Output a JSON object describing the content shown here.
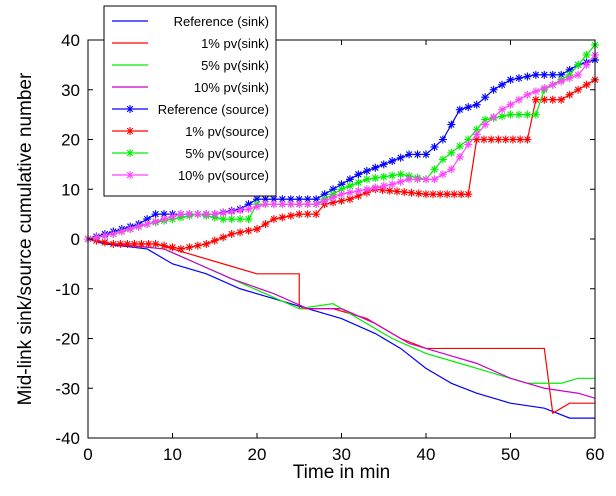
{
  "chart_data": {
    "type": "line",
    "title": "",
    "xlabel": "Time in min",
    "ylabel": "Mid-link sink/source cumulative number",
    "xlim": [
      0,
      60
    ],
    "ylim": [
      -40,
      40
    ],
    "xticks": [
      0,
      10,
      20,
      30,
      40,
      50,
      60
    ],
    "yticks": [
      -40,
      -30,
      -20,
      -10,
      0,
      10,
      20,
      30,
      40
    ],
    "grid": false,
    "legend_position": "top-left",
    "series": [
      {
        "name": "Reference (sink)",
        "color": "#0000ff",
        "marker": "none",
        "points": [
          [
            0,
            0
          ],
          [
            2,
            -1
          ],
          [
            7,
            -2
          ],
          [
            10,
            -5
          ],
          [
            14,
            -7
          ],
          [
            18,
            -10
          ],
          [
            22,
            -12
          ],
          [
            26,
            -14
          ],
          [
            30,
            -16
          ],
          [
            34,
            -19
          ],
          [
            37,
            -22
          ],
          [
            40,
            -26
          ],
          [
            43,
            -29
          ],
          [
            46,
            -31
          ],
          [
            50,
            -33
          ],
          [
            54,
            -34
          ],
          [
            57,
            -36
          ],
          [
            60,
            -36
          ]
        ]
      },
      {
        "name": "1% pv(sink)",
        "color": "#ff0000",
        "marker": "none",
        "points": [
          [
            0,
            0
          ],
          [
            3,
            -1
          ],
          [
            8,
            -1
          ],
          [
            12,
            -3
          ],
          [
            16,
            -5
          ],
          [
            20,
            -7
          ],
          [
            25,
            -7
          ],
          [
            25,
            -14
          ],
          [
            29,
            -14
          ],
          [
            33,
            -16
          ],
          [
            37,
            -20
          ],
          [
            40,
            -22
          ],
          [
            54,
            -22
          ],
          [
            55,
            -35
          ],
          [
            57,
            -33
          ],
          [
            60,
            -33
          ]
        ]
      },
      {
        "name": "5% pv(sink)",
        "color": "#00ee00",
        "marker": "none",
        "points": [
          [
            0,
            0
          ],
          [
            3,
            -1
          ],
          [
            9,
            -2
          ],
          [
            13,
            -5
          ],
          [
            17,
            -8
          ],
          [
            21,
            -11
          ],
          [
            25,
            -14
          ],
          [
            29,
            -13
          ],
          [
            32,
            -16
          ],
          [
            36,
            -20
          ],
          [
            40,
            -23
          ],
          [
            44,
            -25
          ],
          [
            48,
            -27
          ],
          [
            52,
            -29
          ],
          [
            56,
            -29
          ],
          [
            58,
            -28
          ],
          [
            60,
            -28
          ]
        ]
      },
      {
        "name": "10% pv(sink)",
        "color": "#cc00cc",
        "marker": "none",
        "points": [
          [
            0,
            0
          ],
          [
            3,
            -1
          ],
          [
            9,
            -2
          ],
          [
            13,
            -5
          ],
          [
            17,
            -8
          ],
          [
            22,
            -11
          ],
          [
            26,
            -14
          ],
          [
            30,
            -14
          ],
          [
            34,
            -17
          ],
          [
            38,
            -21
          ],
          [
            42,
            -23
          ],
          [
            46,
            -25
          ],
          [
            50,
            -28
          ],
          [
            54,
            -30
          ],
          [
            58,
            -31
          ],
          [
            60,
            -32
          ]
        ]
      },
      {
        "name": "Reference (source)",
        "color": "#0000ff",
        "marker": "star",
        "points": [
          [
            0,
            0
          ],
          [
            2,
            1
          ],
          [
            4,
            2
          ],
          [
            6,
            3
          ],
          [
            8,
            5
          ],
          [
            11,
            5
          ],
          [
            15,
            5
          ],
          [
            18,
            6
          ],
          [
            20,
            8
          ],
          [
            24,
            8
          ],
          [
            27,
            8
          ],
          [
            29,
            10
          ],
          [
            32,
            13
          ],
          [
            35,
            15
          ],
          [
            38,
            17
          ],
          [
            40,
            17
          ],
          [
            42,
            20
          ],
          [
            44,
            26
          ],
          [
            46,
            27
          ],
          [
            48,
            30
          ],
          [
            50,
            32
          ],
          [
            53,
            33
          ],
          [
            56,
            33
          ],
          [
            58,
            35
          ],
          [
            60,
            36
          ]
        ]
      },
      {
        "name": "1% pv(source)",
        "color": "#ff0000",
        "marker": "star",
        "points": [
          [
            0,
            0
          ],
          [
            3,
            -1
          ],
          [
            8,
            -1
          ],
          [
            11,
            -2
          ],
          [
            14,
            -1
          ],
          [
            17,
            1
          ],
          [
            20,
            2
          ],
          [
            22,
            4
          ],
          [
            25,
            5
          ],
          [
            27,
            5
          ],
          [
            28,
            7
          ],
          [
            31,
            8
          ],
          [
            34,
            10
          ],
          [
            40,
            9
          ],
          [
            45,
            9
          ],
          [
            46,
            20
          ],
          [
            52,
            20
          ],
          [
            53,
            28
          ],
          [
            56,
            28
          ],
          [
            58,
            30
          ],
          [
            60,
            32
          ]
        ]
      },
      {
        "name": "5% pv(source)",
        "color": "#00ee00",
        "marker": "star",
        "points": [
          [
            0,
            0
          ],
          [
            3,
            1
          ],
          [
            7,
            3
          ],
          [
            10,
            4
          ],
          [
            13,
            5
          ],
          [
            16,
            4
          ],
          [
            19,
            4
          ],
          [
            20,
            7
          ],
          [
            24,
            7
          ],
          [
            27,
            7
          ],
          [
            30,
            10
          ],
          [
            33,
            12
          ],
          [
            37,
            13
          ],
          [
            40,
            12
          ],
          [
            42,
            16
          ],
          [
            45,
            20
          ],
          [
            47,
            24
          ],
          [
            50,
            25
          ],
          [
            53,
            25
          ],
          [
            54,
            30
          ],
          [
            57,
            33
          ],
          [
            60,
            39
          ]
        ]
      },
      {
        "name": "10% pv(source)",
        "color": "#ff44ff",
        "marker": "star",
        "points": [
          [
            0,
            0
          ],
          [
            3,
            1
          ],
          [
            7,
            3
          ],
          [
            11,
            5
          ],
          [
            15,
            5
          ],
          [
            19,
            6
          ],
          [
            21,
            7
          ],
          [
            24,
            7
          ],
          [
            27,
            7
          ],
          [
            30,
            9
          ],
          [
            33,
            10
          ],
          [
            36,
            11
          ],
          [
            38,
            12
          ],
          [
            41,
            12
          ],
          [
            43,
            14
          ],
          [
            45,
            19
          ],
          [
            47,
            23
          ],
          [
            49,
            26
          ],
          [
            52,
            29
          ],
          [
            55,
            31
          ],
          [
            58,
            33
          ],
          [
            60,
            37
          ]
        ]
      }
    ]
  }
}
